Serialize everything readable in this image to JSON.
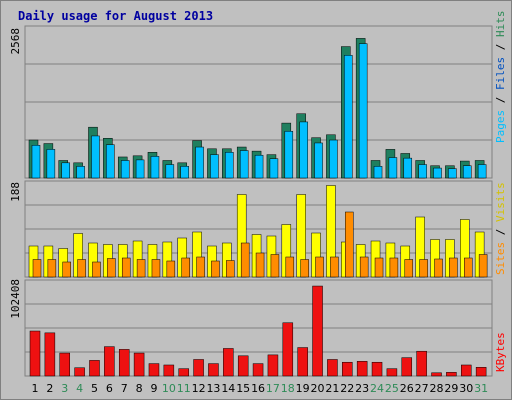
{
  "chart_data": [
    {
      "title": "Daily usage for August 2013",
      "type": "bar",
      "panel": "top",
      "ymax_label": "2568",
      "ylim": [
        0,
        2568
      ],
      "legend_labels": [
        "Pages",
        "Files",
        "Hits"
      ],
      "categories": [
        "1",
        "2",
        "3",
        "4",
        "5",
        "6",
        "7",
        "8",
        "9",
        "10",
        "11",
        "12",
        "13",
        "14",
        "15",
        "16",
        "17",
        "18",
        "19",
        "20",
        "21",
        "22",
        "23",
        "24",
        "25",
        "26",
        "27",
        "28",
        "29",
        "30",
        "31"
      ],
      "series": [
        {
          "name": "Hits",
          "values": [
            650,
            590,
            300,
            260,
            870,
            680,
            360,
            380,
            440,
            300,
            260,
            640,
            500,
            500,
            530,
            460,
            400,
            940,
            1100,
            690,
            740,
            2250,
            2390,
            300,
            490,
            420,
            300,
            210,
            210,
            290,
            300
          ]
        },
        {
          "name": "Files",
          "values": [
            560,
            490,
            260,
            200,
            720,
            570,
            300,
            310,
            370,
            230,
            200,
            530,
            400,
            440,
            470,
            390,
            330,
            800,
            960,
            600,
            650,
            2100,
            2300,
            200,
            350,
            340,
            230,
            170,
            160,
            210,
            230
          ]
        },
        {
          "name": "Pages",
          "values": [
            0,
            0,
            0,
            0,
            0,
            0,
            0,
            0,
            0,
            0,
            0,
            0,
            0,
            0,
            0,
            0,
            0,
            0,
            0,
            0,
            0,
            0,
            0,
            0,
            0,
            0,
            0,
            0,
            0,
            0,
            0
          ]
        }
      ]
    },
    {
      "type": "bar",
      "panel": "middle",
      "ymax_label": "188",
      "ylim": [
        0,
        188
      ],
      "legend_labels": [
        "Sites",
        "Visits"
      ],
      "categories": [
        "1",
        "2",
        "3",
        "4",
        "5",
        "6",
        "7",
        "8",
        "9",
        "10",
        "11",
        "12",
        "13",
        "14",
        "15",
        "16",
        "17",
        "18",
        "19",
        "20",
        "21",
        "22",
        "23",
        "24",
        "25",
        "26",
        "27",
        "28",
        "29",
        "30",
        "31"
      ],
      "series": [
        {
          "name": "Visits",
          "values": [
            62,
            62,
            57,
            87,
            68,
            65,
            65,
            72,
            65,
            70,
            78,
            90,
            62,
            68,
            165,
            85,
            82,
            105,
            165,
            88,
            183,
            70,
            65,
            72,
            68,
            62,
            120,
            75,
            75,
            115,
            90
          ]
        },
        {
          "name": "Sites",
          "values": [
            35,
            35,
            30,
            35,
            30,
            37,
            38,
            35,
            35,
            32,
            38,
            40,
            32,
            33,
            68,
            48,
            45,
            40,
            35,
            40,
            40,
            130,
            40,
            38,
            38,
            35,
            35,
            36,
            38,
            38,
            45
          ]
        }
      ]
    },
    {
      "type": "bar",
      "panel": "bottom",
      "ymax_label": "102408",
      "ylim": [
        0,
        102408
      ],
      "legend_labels": [
        "KBytes"
      ],
      "categories": [
        "1",
        "2",
        "3",
        "4",
        "5",
        "6",
        "7",
        "8",
        "9",
        "10",
        "11",
        "12",
        "13",
        "14",
        "15",
        "16",
        "17",
        "18",
        "19",
        "20",
        "21",
        "22",
        "23",
        "24",
        "25",
        "26",
        "27",
        "28",
        "29",
        "30",
        "31"
      ],
      "series": [
        {
          "name": "KBytes",
          "values": [
            49000,
            47000,
            25000,
            9000,
            17000,
            32000,
            29000,
            25000,
            13500,
            12000,
            8000,
            18000,
            13500,
            30000,
            22000,
            13500,
            23000,
            58000,
            31000,
            98000,
            18000,
            15000,
            16000,
            15000,
            8000,
            20000,
            27000,
            3500,
            4000,
            12000,
            9500
          ]
        }
      ]
    }
  ],
  "day_label_colors": [
    "#000000",
    "#000000",
    "#2e8b57",
    "#2e8b57",
    "#000000",
    "#000000",
    "#000000",
    "#000000",
    "#000000",
    "#2e8b57",
    "#2e8b57",
    "#000000",
    "#000000",
    "#000000",
    "#000000",
    "#000000",
    "#2e8b57",
    "#2e8b57",
    "#000000",
    "#000000",
    "#000000",
    "#000000",
    "#000000",
    "#2e8b57",
    "#2e8b57",
    "#000000",
    "#000000",
    "#000000",
    "#000000",
    "#000000",
    "#2e8b57"
  ],
  "colors": {
    "title": "#0000a0",
    "panel": "#c0c0c0",
    "grid": "#808080",
    "hits": "#1f7f5f",
    "files": "#00bfff",
    "pages": "#1c3fa8",
    "visits": "#ffff00",
    "sites": "#ff8c00",
    "kbytes": "#ee1111",
    "hits_text": "#2e8b57",
    "files_text": "#0050c0",
    "pages_text": "#00bfff",
    "visits_text": "#d4c200",
    "sites_text": "#ff8c00",
    "kbytes_text": "#ff0000",
    "sep_text": "#000000"
  }
}
